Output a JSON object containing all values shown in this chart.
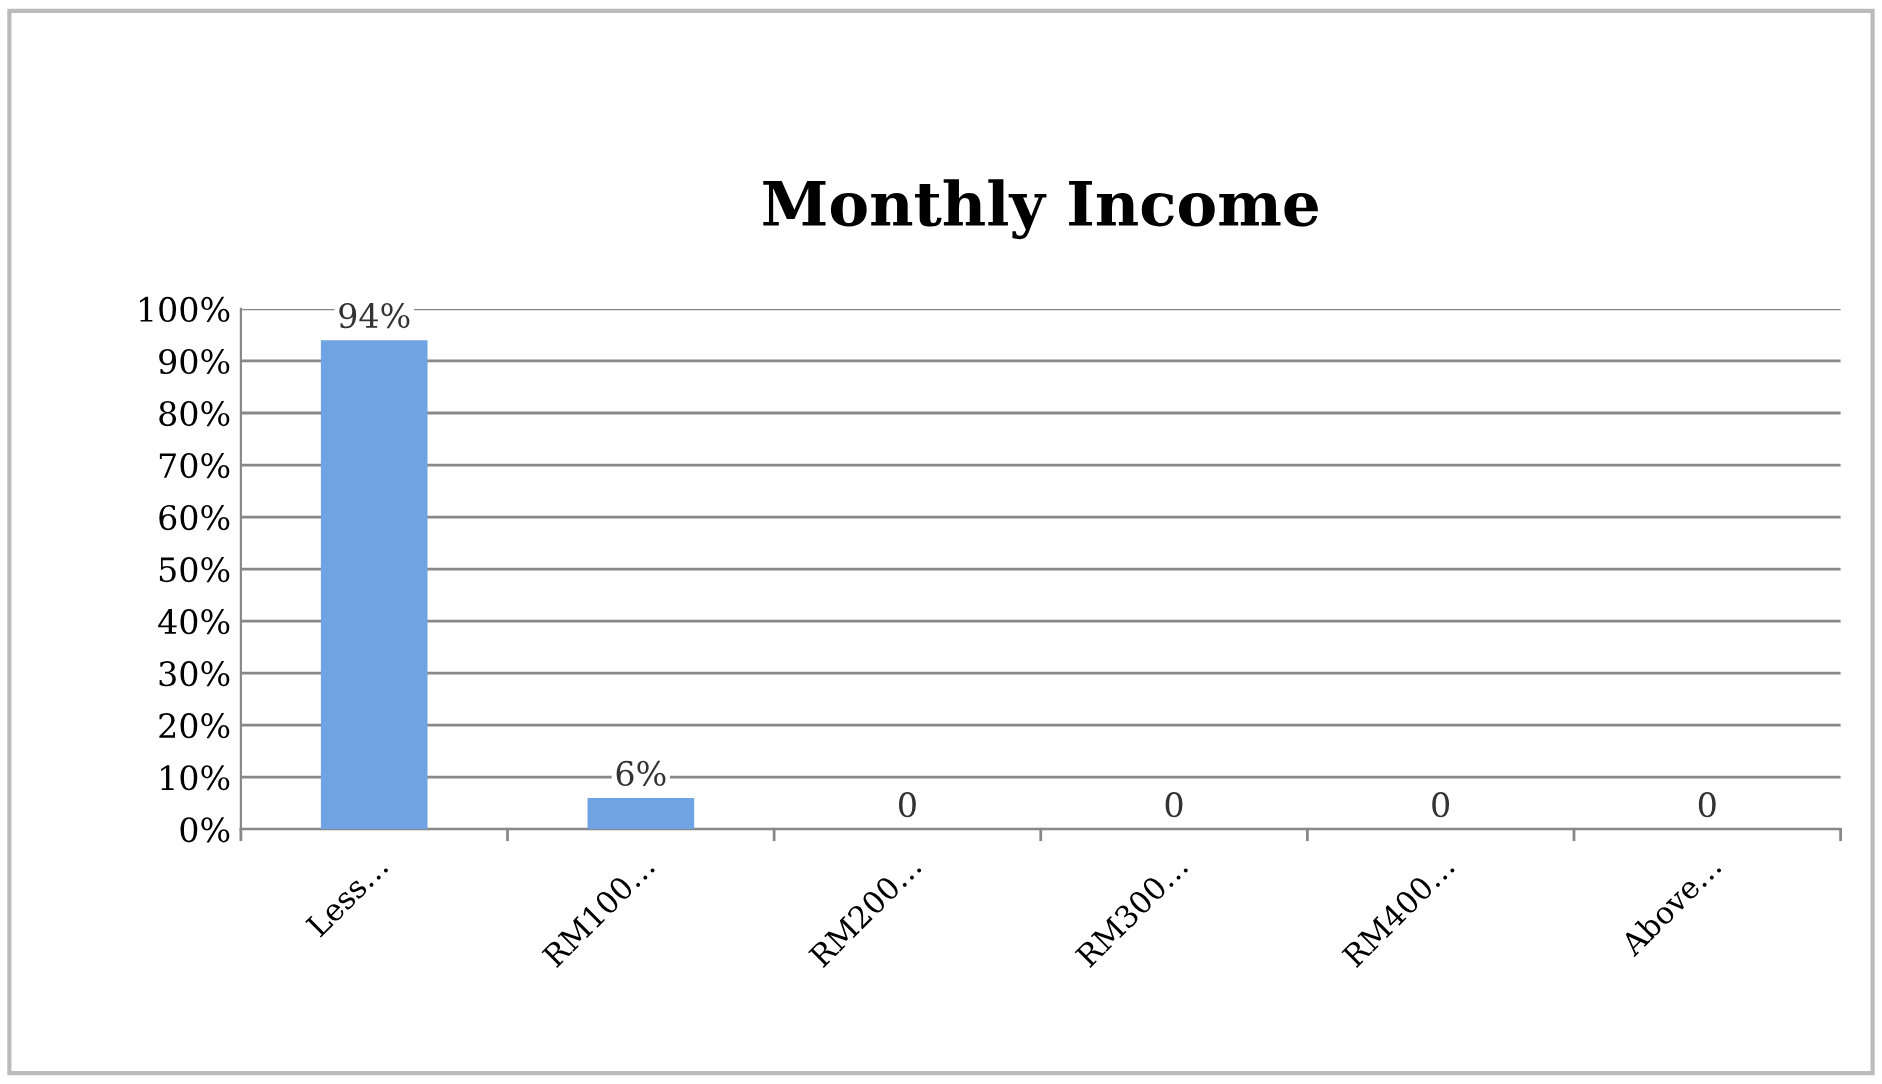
{
  "chart_data": {
    "type": "bar",
    "title": "Monthly Income",
    "categories": [
      "Less…",
      "RM100…",
      "RM200…",
      "RM300…",
      "RM400…",
      "Above…"
    ],
    "values": [
      94,
      6,
      0,
      0,
      0,
      0
    ],
    "value_labels": [
      "94%",
      "6%",
      "0",
      "0",
      "0",
      "0"
    ],
    "color": "#6fa3e3",
    "ylim": [
      0,
      100
    ],
    "yticks": [
      {
        "value": 0,
        "label": "0%"
      },
      {
        "value": 10,
        "label": "10%"
      },
      {
        "value": 20,
        "label": "20%"
      },
      {
        "value": 30,
        "label": "30%"
      },
      {
        "value": 40,
        "label": "40%"
      },
      {
        "value": 50,
        "label": "50%"
      },
      {
        "value": 60,
        "label": "60%"
      },
      {
        "value": 70,
        "label": "70%"
      },
      {
        "value": 80,
        "label": "80%"
      },
      {
        "value": 90,
        "label": "90%"
      },
      {
        "value": 100,
        "label": "100%"
      }
    ],
    "grid": "y",
    "legend": false
  }
}
